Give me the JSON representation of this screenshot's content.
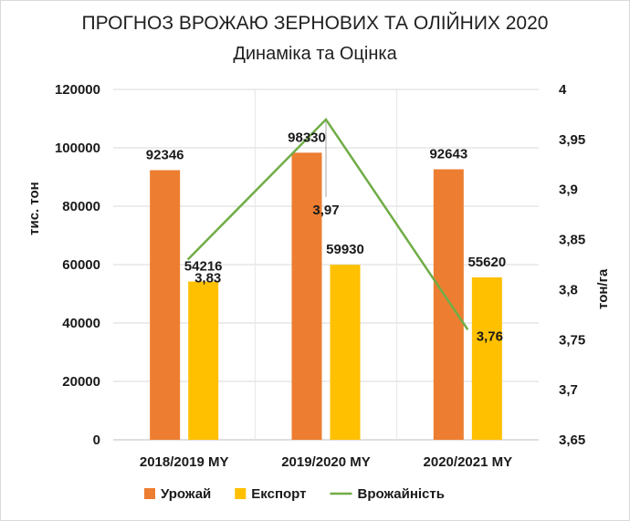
{
  "chart_data": {
    "type": "bar",
    "title": "ПРОГНОЗ ВРОЖАЮ ЗЕРНОВИХ ТА ОЛІЙНИХ 2020",
    "subtitle": "Динаміка та Оцінка",
    "categories": [
      "2018/2019 MY",
      "2019/2020 MY",
      "2020/2021 MY"
    ],
    "ylabel": "тис. тон",
    "y2label": "тон/га",
    "ylim": [
      0,
      120000
    ],
    "y2lim": [
      3.65,
      4
    ],
    "yticks": [
      "0",
      "20000",
      "40000",
      "60000",
      "80000",
      "100000",
      "120000"
    ],
    "y2ticks": [
      "3,65",
      "3,7",
      "3,75",
      "3,8",
      "3,85",
      "3,9",
      "3,95",
      "4"
    ],
    "grid": true,
    "legend_position": "bottom",
    "series": [
      {
        "name": "Урожай",
        "kind": "bar",
        "axis": "left",
        "color": "#ed7d31",
        "values": [
          92346,
          98330,
          92643
        ],
        "labels": [
          "92346",
          "98330",
          "92643"
        ]
      },
      {
        "name": "Експорт",
        "kind": "bar",
        "axis": "left",
        "color": "#ffc000",
        "values": [
          54216,
          59930,
          55620
        ],
        "labels": [
          "54216",
          "59930",
          "55620"
        ]
      },
      {
        "name": "Врожайність",
        "kind": "line",
        "axis": "right",
        "color": "#70ad47",
        "values": [
          3.83,
          3.97,
          3.76
        ],
        "labels": [
          "3,83",
          "3,97",
          "3,76"
        ]
      }
    ]
  }
}
